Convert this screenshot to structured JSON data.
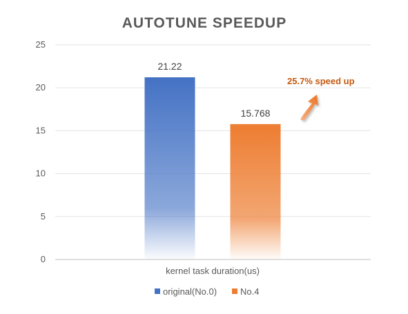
{
  "chart_data": {
    "type": "bar",
    "title": "AUTOTUNE SPEEDUP",
    "categories": [
      "kernel task duration(us)"
    ],
    "series": [
      {
        "name": "original(No.0)",
        "values": [
          21.22
        ],
        "color": "#4472C4",
        "label": "21.22"
      },
      {
        "name": "No.4",
        "values": [
          15.768
        ],
        "color": "#ED7D31",
        "label": "15.768"
      }
    ],
    "ylim": [
      0,
      25
    ],
    "yticks": [
      0,
      5,
      10,
      15,
      20,
      25
    ],
    "grid": true,
    "legend": "bottom",
    "annotation": {
      "text": "25.7% speed up",
      "color": "#C55A11"
    }
  }
}
